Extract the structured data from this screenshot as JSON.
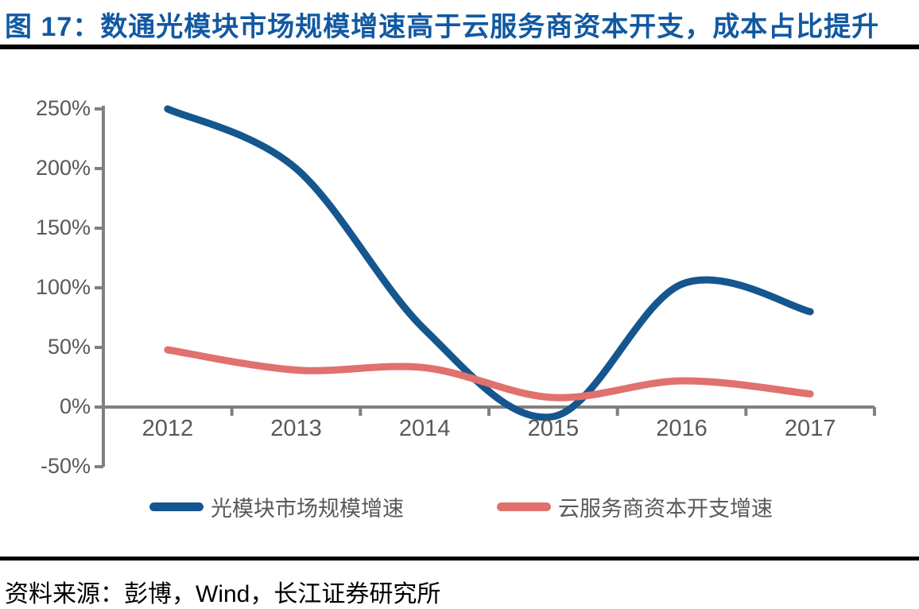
{
  "figure": {
    "title": "图 17：数通光模块市场规模增速高于云服务商资本开支，成本占比提升",
    "source": "资料来源：彭博，Wind，长江证券研究所"
  },
  "colors": {
    "title_blue": "#1159A2",
    "series1_blue": "#15568E",
    "series2_pink": "#E0716E",
    "axis_gray": "#808080",
    "label_gray": "#595959",
    "rule_black": "#000000"
  },
  "chart_data": {
    "type": "line",
    "title": "",
    "xlabel": "",
    "ylabel": "",
    "categories": [
      "2012",
      "2013",
      "2014",
      "2015",
      "2016",
      "2017"
    ],
    "series": [
      {
        "name": "光模块市场规模增速",
        "color": "#15568E",
        "values": [
          250,
          200,
          65,
          -8,
          103,
          80
        ]
      },
      {
        "name": "云服务商资本开支增速",
        "color": "#E0716E",
        "values": [
          48,
          31,
          33,
          8,
          22,
          11
        ]
      }
    ],
    "y_tick_labels": [
      "250%",
      "200%",
      "150%",
      "100%",
      "50%",
      "0%",
      "-50%"
    ],
    "y_tick_values": [
      250,
      200,
      150,
      100,
      50,
      0,
      -50
    ],
    "ylim": [
      -50,
      250
    ],
    "unit": "%",
    "grid": false,
    "line_smoothing": true,
    "legend_position": "bottom"
  }
}
